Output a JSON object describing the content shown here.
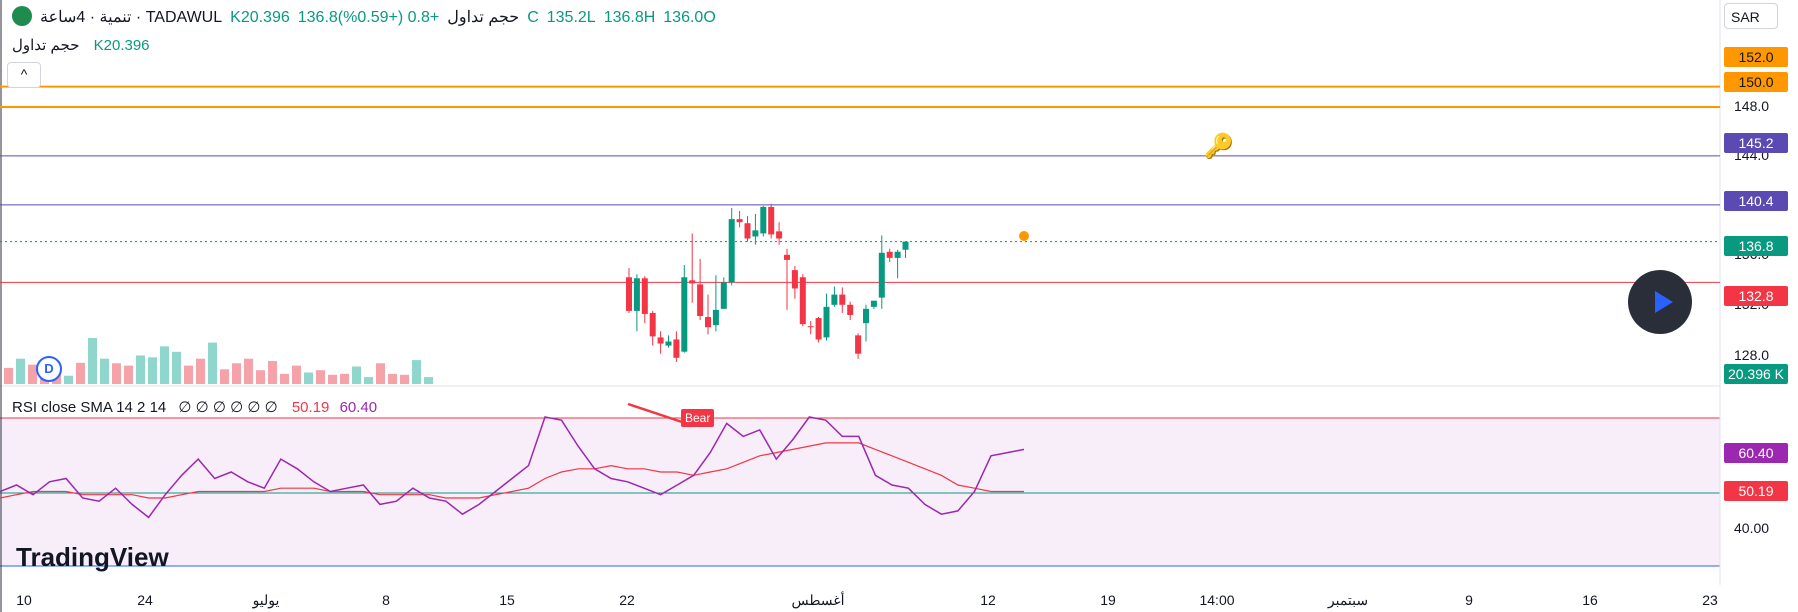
{
  "legend": {
    "symbol": "تنمية · 4ساعة · TADAWUL",
    "volume_label": "حجم تداول",
    "volume_value": "K20.396",
    "change": "+0.8 (+0.59%)",
    "close": "136.8C",
    "low": "135.2L",
    "high": "136.8H",
    "open": "136.0O"
  },
  "vol_legend": {
    "label": "حجم تداول",
    "value": "K20.396"
  },
  "rsi_legend": {
    "label": "RSI close SMA 14 2 14",
    "nulls": "∅ ∅ ∅ ∅ ∅ ∅",
    "v1": "50.19",
    "v2": "60.40"
  },
  "currency": "SAR",
  "tags": {
    "t152": "152.0",
    "t150": "150.0",
    "t145": "145.2",
    "t140": "140.4",
    "t136": "136.8",
    "t132": "132.8",
    "vol": "20.396 K",
    "rsi60": "60.40",
    "rsi50": "50.19"
  },
  "axis": {
    "a148": "148.0",
    "a144": "144.0",
    "a136": "136.0",
    "a132": "132.0",
    "a128": "128.0",
    "a40": "40.00"
  },
  "xaxis": [
    "10",
    "24",
    "يوليو",
    "8",
    "15",
    "22",
    "أغسطس",
    "12",
    "19",
    "14:00",
    "سبتمبر",
    "9",
    "16",
    "23"
  ],
  "bear_label": "Bear",
  "d_badge": "D",
  "logo": "TradingView",
  "collapse": "^",
  "colors": {
    "up": "#089981",
    "down": "#f23645",
    "orange": "#ff9800",
    "purple": "#9c27b0",
    "indigo": "#5b4ab1",
    "red_line": "#f23645"
  },
  "chart_data": {
    "type": "candlestick",
    "price_range": [
      124.5,
      155.0
    ],
    "candles": [
      {
        "o": 133.3,
        "c": 130.0,
        "h": 134.2,
        "l": 129.8
      },
      {
        "o": 130.0,
        "c": 133.2,
        "h": 133.6,
        "l": 128.0
      },
      {
        "o": 133.2,
        "c": 129.7,
        "h": 133.4,
        "l": 128.8
      },
      {
        "o": 129.8,
        "c": 127.5,
        "h": 130.0,
        "l": 126.6
      },
      {
        "o": 127.4,
        "c": 126.8,
        "h": 128.0,
        "l": 125.8
      },
      {
        "o": 126.6,
        "c": 127.0,
        "h": 127.6,
        "l": 126.4
      },
      {
        "o": 127.2,
        "c": 125.4,
        "h": 128.0,
        "l": 125.0
      },
      {
        "o": 126.0,
        "c": 133.3,
        "h": 134.5,
        "l": 125.9
      },
      {
        "o": 133.0,
        "c": 132.7,
        "h": 137.6,
        "l": 130.8
      },
      {
        "o": 132.6,
        "c": 129.5,
        "h": 135.1,
        "l": 129.1
      },
      {
        "o": 129.4,
        "c": 128.4,
        "h": 131.6,
        "l": 127.7
      },
      {
        "o": 128.6,
        "c": 130.1,
        "h": 133.5,
        "l": 128.0
      },
      {
        "o": 130.2,
        "c": 132.8,
        "h": 133.3,
        "l": 130.3
      },
      {
        "o": 132.8,
        "c": 139.0,
        "h": 140.1,
        "l": 132.5
      },
      {
        "o": 139.0,
        "c": 138.7,
        "h": 139.8,
        "l": 138.2
      },
      {
        "o": 138.6,
        "c": 137.1,
        "h": 139.3,
        "l": 136.8
      },
      {
        "o": 137.3,
        "c": 137.9,
        "h": 139.5,
        "l": 136.5
      },
      {
        "o": 137.6,
        "c": 140.2,
        "h": 140.3,
        "l": 137.3
      },
      {
        "o": 140.2,
        "c": 137.5,
        "h": 140.5,
        "l": 137.1
      },
      {
        "o": 137.8,
        "c": 137.1,
        "h": 138.7,
        "l": 136.5
      },
      {
        "o": 135.5,
        "c": 135.0,
        "h": 136.1,
        "l": 130.1
      },
      {
        "o": 134.0,
        "c": 132.2,
        "h": 134.4,
        "l": 131.2
      },
      {
        "o": 133.3,
        "c": 128.7,
        "h": 133.6,
        "l": 128.5
      },
      {
        "o": 128.5,
        "c": 128.4,
        "h": 129.0,
        "l": 127.7
      },
      {
        "o": 129.3,
        "c": 127.2,
        "h": 129.4,
        "l": 126.9
      },
      {
        "o": 127.4,
        "c": 130.4,
        "h": 131.7,
        "l": 127.1
      },
      {
        "o": 130.6,
        "c": 131.6,
        "h": 132.4,
        "l": 130.4
      },
      {
        "o": 131.6,
        "c": 130.6,
        "h": 132.3,
        "l": 129.8
      },
      {
        "o": 130.6,
        "c": 129.6,
        "h": 130.9,
        "l": 129.1
      },
      {
        "o": 127.6,
        "c": 125.8,
        "h": 127.8,
        "l": 125.3
      },
      {
        "o": 128.8,
        "c": 130.2,
        "h": 130.6,
        "l": 127.0
      },
      {
        "o": 130.4,
        "c": 131.0,
        "h": 131.0,
        "l": 130.2
      },
      {
        "o": 131.3,
        "c": 135.7,
        "h": 137.4,
        "l": 130.2
      },
      {
        "o": 135.8,
        "c": 135.2,
        "h": 136.1,
        "l": 134.8
      },
      {
        "o": 135.2,
        "c": 135.8,
        "h": 136.0,
        "l": 133.2
      },
      {
        "o": 136.0,
        "c": 136.8,
        "h": 136.8,
        "l": 135.2
      }
    ],
    "volume": [
      {
        "v": 0.35,
        "u": false
      },
      {
        "v": 0.55,
        "u": true
      },
      {
        "v": 0.42,
        "u": false
      },
      {
        "v": 0.3,
        "u": false
      },
      {
        "v": 0.2,
        "u": false
      },
      {
        "v": 0.18,
        "u": true
      },
      {
        "v": 0.46,
        "u": false
      },
      {
        "v": 1.0,
        "u": true
      },
      {
        "v": 0.55,
        "u": true
      },
      {
        "v": 0.45,
        "u": false
      },
      {
        "v": 0.4,
        "u": false
      },
      {
        "v": 0.62,
        "u": true
      },
      {
        "v": 0.58,
        "u": true
      },
      {
        "v": 0.82,
        "u": true
      },
      {
        "v": 0.7,
        "u": true
      },
      {
        "v": 0.4,
        "u": false
      },
      {
        "v": 0.55,
        "u": false
      },
      {
        "v": 0.9,
        "u": true
      },
      {
        "v": 0.32,
        "u": false
      },
      {
        "v": 0.45,
        "u": false
      },
      {
        "v": 0.55,
        "u": false
      },
      {
        "v": 0.3,
        "u": false
      },
      {
        "v": 0.5,
        "u": false
      },
      {
        "v": 0.22,
        "u": false
      },
      {
        "v": 0.4,
        "u": false
      },
      {
        "v": 0.25,
        "u": true
      },
      {
        "v": 0.3,
        "u": false
      },
      {
        "v": 0.2,
        "u": false
      },
      {
        "v": 0.22,
        "u": false
      },
      {
        "v": 0.38,
        "u": true
      },
      {
        "v": 0.15,
        "u": true
      },
      {
        "v": 0.45,
        "u": false
      },
      {
        "v": 0.22,
        "u": false
      },
      {
        "v": 0.2,
        "u": false
      },
      {
        "v": 0.52,
        "u": true
      },
      {
        "v": 0.15,
        "u": true
      }
    ],
    "levels": [
      152.0,
      150.0,
      145.2,
      140.4,
      136.8,
      132.8
    ],
    "rsi": [
      56,
      58,
      55,
      59,
      60,
      54,
      53,
      57,
      52,
      48,
      55,
      61,
      66,
      60,
      62,
      59,
      57,
      66,
      63,
      59,
      56,
      57,
      58,
      52,
      53,
      57,
      54,
      53,
      49,
      52,
      56,
      60,
      64,
      79,
      78,
      70,
      63,
      60,
      59,
      57,
      55,
      58,
      61,
      68,
      77,
      73,
      75,
      66,
      72,
      79,
      78,
      73,
      73,
      61,
      58,
      57,
      52,
      49,
      50,
      56,
      67,
      68,
      69
    ],
    "rsi_ma": [
      54,
      55,
      56,
      56,
      56,
      55,
      55,
      55,
      55,
      54,
      54,
      55,
      56,
      56,
      56,
      56,
      56,
      57,
      57,
      57,
      56,
      56,
      56,
      55,
      55,
      55,
      55,
      54,
      54,
      54,
      55,
      56,
      57,
      60,
      62,
      63,
      63,
      64,
      63,
      63,
      62,
      62,
      61,
      62,
      63,
      65,
      67,
      68,
      69,
      70,
      71,
      71,
      71,
      69,
      67,
      65,
      63,
      61,
      58,
      57,
      56,
      56,
      56
    ],
    "rsi_range": [
      33,
      83
    ]
  }
}
